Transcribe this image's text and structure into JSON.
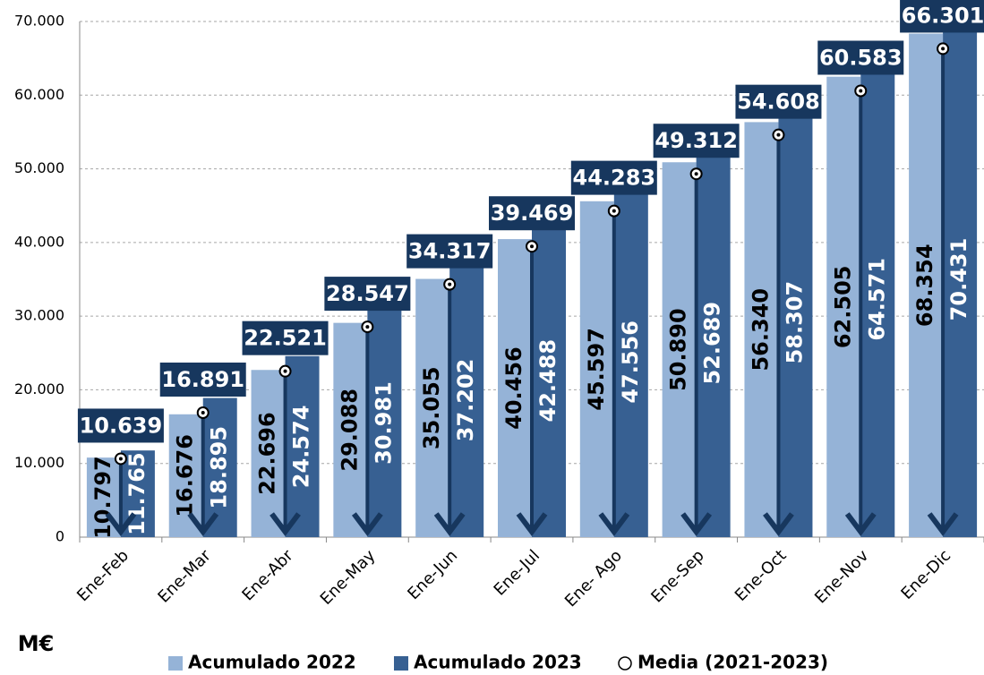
{
  "chart_data": {
    "type": "bar",
    "ylabel": "M€",
    "categories": [
      "Ene-Feb",
      "Ene-Mar",
      "Ene-Abr",
      "Ene-May",
      "Ene-Jun",
      "Ene-Jul",
      "Ene- Ago",
      "Ene-Sep",
      "Ene-Oct",
      "Ene-Nov",
      "Ene-Dic"
    ],
    "series": [
      {
        "name": "Acumulado 2022",
        "color": "#95b3d7",
        "label_color": "#000000",
        "values": [
          10797,
          16676,
          22696,
          29088,
          35055,
          40456,
          45597,
          50890,
          56340,
          62505,
          68354
        ],
        "value_labels": [
          "10.797",
          "16.676",
          "22.696",
          "29.088",
          "35.055",
          "40.456",
          "45.597",
          "50.890",
          "56.340",
          "62.505",
          "68.354"
        ]
      },
      {
        "name": "Acumulado 2023",
        "color": "#376092",
        "label_color": "#ffffff",
        "values": [
          11765,
          18895,
          24574,
          30981,
          37202,
          42488,
          47556,
          52689,
          58307,
          64571,
          70431
        ],
        "value_labels": [
          "11.765",
          "18.895",
          "24.574",
          "30.981",
          "37.202",
          "42.488",
          "47.556",
          "52.689",
          "58.307",
          "64.571",
          "70.431"
        ]
      },
      {
        "name": "Media (2021-2023)",
        "type": "scatter",
        "color": "#17375e",
        "values": [
          10639,
          16891,
          22521,
          28547,
          34317,
          39469,
          44283,
          49312,
          54608,
          60583,
          66301
        ],
        "value_labels": [
          "10.639",
          "16.891",
          "22.521",
          "28.547",
          "34.317",
          "39.469",
          "44.283",
          "49.312",
          "54.608",
          "60.583",
          "66.301"
        ]
      }
    ],
    "ylim": [
      0,
      70000
    ],
    "yticks": [
      0,
      {
        "value": 10000,
        "label": "10.000"
      },
      {
        "value": 20000,
        "label": "20.000"
      },
      {
        "value": 30000,
        "label": "30.000"
      },
      {
        "value": 40000,
        "label": "40.000"
      },
      {
        "value": 50000,
        "label": "50.000"
      },
      {
        "value": 60000,
        "label": "60.000"
      },
      {
        "value": 70000,
        "label": "70.000"
      }
    ],
    "grid": true,
    "legend": "bottom"
  }
}
